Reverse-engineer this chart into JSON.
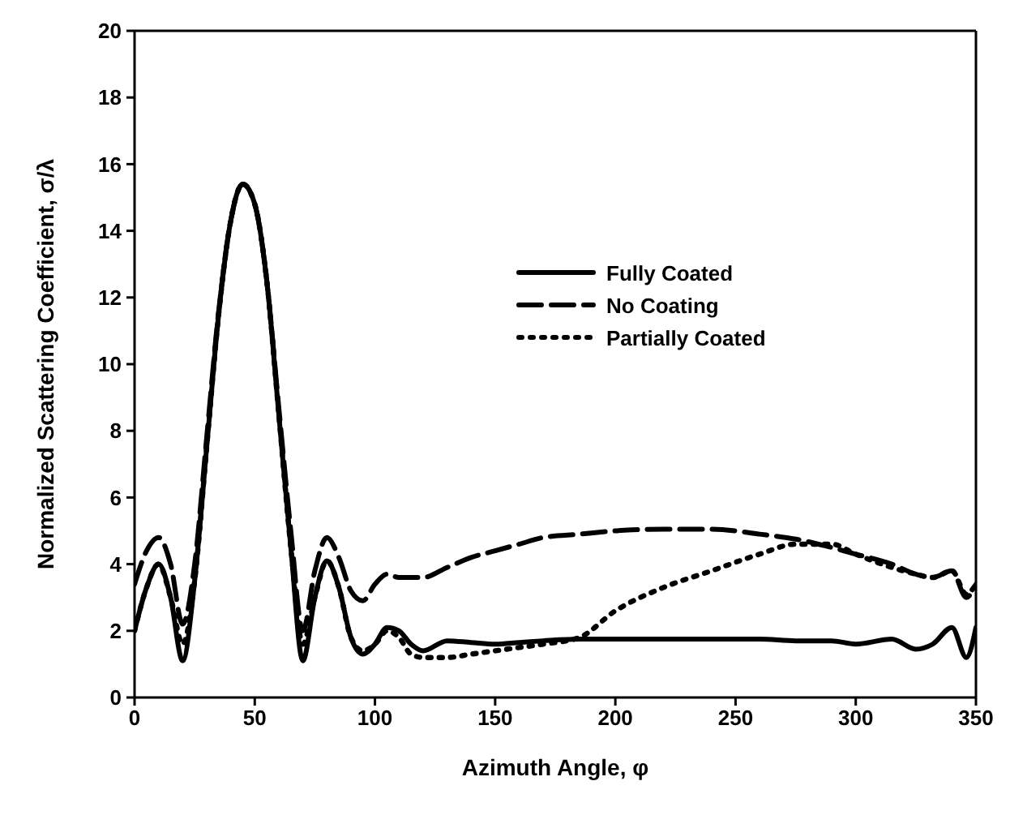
{
  "chart_data": {
    "type": "line",
    "xlabel": "Azimuth Angle, φ",
    "ylabel": "Normalized Scattering Coefficient, σ/λ",
    "x": [
      0,
      5,
      10,
      15,
      20,
      25,
      30,
      35,
      40,
      45,
      50,
      55,
      60,
      65,
      70,
      75,
      80,
      85,
      90,
      95,
      100,
      105,
      110,
      115,
      120,
      130,
      140,
      150,
      160,
      170,
      185,
      200,
      220,
      240,
      260,
      275,
      290,
      300,
      315,
      325,
      332,
      340,
      346,
      350
    ],
    "series": [
      {
        "name": "Fully Coated",
        "color": "#000000",
        "line_style": "solid",
        "values": [
          2.0,
          3.3,
          4.0,
          3.0,
          1.1,
          3.5,
          7.5,
          11.5,
          14.3,
          15.4,
          14.8,
          12.5,
          8.5,
          4.5,
          1.1,
          3.0,
          4.1,
          3.3,
          1.8,
          1.3,
          1.6,
          2.1,
          2.0,
          1.6,
          1.4,
          1.7,
          1.65,
          1.6,
          1.65,
          1.7,
          1.75,
          1.75,
          1.75,
          1.75,
          1.75,
          1.7,
          1.7,
          1.6,
          1.75,
          1.45,
          1.6,
          2.1,
          1.2,
          2.1
        ]
      },
      {
        "name": "No Coating",
        "color": "#000000",
        "line_style": "dashed",
        "values": [
          3.4,
          4.4,
          4.8,
          4.0,
          2.2,
          4.0,
          7.8,
          11.6,
          14.3,
          15.4,
          14.8,
          12.5,
          8.7,
          5.0,
          2.0,
          3.8,
          4.8,
          4.2,
          3.2,
          2.9,
          3.4,
          3.7,
          3.6,
          3.6,
          3.6,
          3.9,
          4.2,
          4.4,
          4.6,
          4.8,
          4.9,
          5.0,
          5.05,
          5.05,
          4.9,
          4.75,
          4.5,
          4.3,
          4.0,
          3.7,
          3.6,
          3.8,
          3.0,
          3.4
        ]
      },
      {
        "name": "Partially Coated",
        "color": "#000000",
        "line_style": "dotted",
        "values": [
          2.0,
          3.3,
          4.0,
          3.0,
          1.6,
          3.5,
          7.5,
          11.5,
          14.3,
          15.4,
          14.8,
          12.5,
          8.5,
          4.5,
          1.6,
          3.0,
          4.1,
          3.3,
          1.8,
          1.4,
          1.6,
          2.0,
          1.8,
          1.3,
          1.2,
          1.2,
          1.3,
          1.4,
          1.5,
          1.6,
          1.8,
          2.6,
          3.3,
          3.8,
          4.3,
          4.6,
          4.6,
          4.3,
          3.9,
          3.7,
          3.6,
          3.8,
          3.1,
          3.4
        ]
      }
    ],
    "xlim": [
      0,
      350
    ],
    "xticks": [
      0,
      50,
      100,
      150,
      200,
      250,
      300,
      350
    ],
    "ylim": [
      0,
      20
    ],
    "yticks": [
      0,
      2,
      4,
      6,
      8,
      10,
      12,
      14,
      16,
      18,
      20
    ],
    "grid": false,
    "legend": "top right"
  }
}
